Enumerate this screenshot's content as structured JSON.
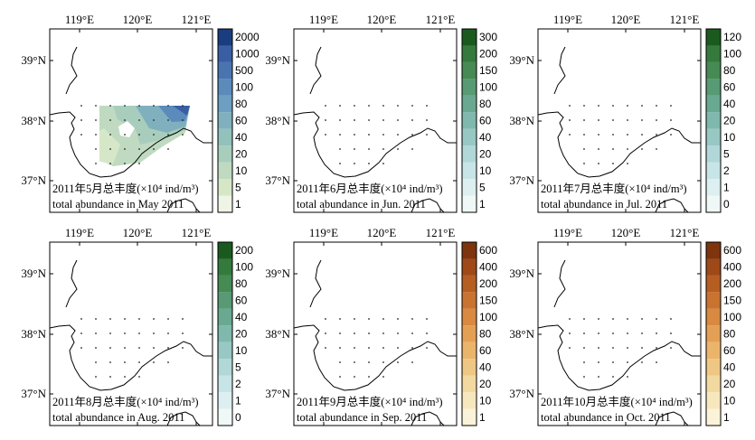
{
  "lon_labels": [
    "119°E",
    "120°E",
    "121°E"
  ],
  "lat_labels": [
    "39°N",
    "38°N",
    "37°N"
  ],
  "panels": [
    {
      "title": "2011年5月总丰度(×10⁴ ind/m³)",
      "subtitle": "total abundance in May 2011",
      "scale": [
        "1",
        "5",
        "10",
        "20",
        "40",
        "60",
        "80",
        "100",
        "500",
        "1000",
        "2000"
      ],
      "colors": [
        "#eef4e6",
        "#d6e7c8",
        "#bfdac0",
        "#a8cdbd",
        "#93c1bb",
        "#80b0bd",
        "#6c9fc1",
        "#5b8bbb",
        "#4a74b0",
        "#3a5ea3",
        "#1a3d7f"
      ],
      "field": "blue"
    },
    {
      "title": "2011年6月总丰度(×10⁴ ind/m³)",
      "subtitle": "total abundance in Jun. 2011",
      "scale": [
        "1",
        "5",
        "10",
        "20",
        "40",
        "60",
        "80",
        "100",
        "150",
        "200",
        "300"
      ],
      "colors": [
        "#f0f7f7",
        "#ddeff0",
        "#c7e4e6",
        "#b1d7d8",
        "#98c8c4",
        "#7fb8ac",
        "#69a891",
        "#579a73",
        "#468a54",
        "#347a3c",
        "#1a5a1e"
      ],
      "field": "green-jun"
    },
    {
      "title": "2011年7月总丰度(×10⁴ ind/m³)",
      "subtitle": "total abundance in Jul. 2011",
      "scale": [
        "0",
        "1",
        "2",
        "5",
        "10",
        "20",
        "40",
        "60",
        "80",
        "100",
        "120"
      ],
      "colors": [
        "#f0f7f7",
        "#ddeff0",
        "#c7e4e6",
        "#b1d7d8",
        "#98c8c4",
        "#7fb8ac",
        "#69a891",
        "#579a73",
        "#468a54",
        "#347a3c",
        "#1a5a1e"
      ],
      "field": "green-jul"
    },
    {
      "title": "2011年8月总丰度(×10⁴ ind/m³)",
      "subtitle": "total abundance in Aug. 2011",
      "scale": [
        "0",
        "1",
        "2",
        "5",
        "10",
        "20",
        "40",
        "60",
        "80",
        "100",
        "200"
      ],
      "colors": [
        "#f0f7f7",
        "#ddeff0",
        "#c7e4e6",
        "#b1d7d8",
        "#98c8c4",
        "#7fb8ac",
        "#69a891",
        "#579a73",
        "#468a54",
        "#347a3c",
        "#1a5a1e"
      ],
      "field": "green-aug"
    },
    {
      "title": "2011年9月总丰度(×10⁴ ind/m³)",
      "subtitle": "total abundance in Sep. 2011",
      "scale": [
        "1",
        "10",
        "20",
        "40",
        "60",
        "80",
        "100",
        "150",
        "200",
        "400",
        "600"
      ],
      "colors": [
        "#fbf3d9",
        "#f6e7bd",
        "#f2d9a0",
        "#eec784",
        "#eab56b",
        "#e3a055",
        "#d98a40",
        "#c97330",
        "#b65e22",
        "#9e4917",
        "#7e340c"
      ],
      "field": "orange-sep"
    },
    {
      "title": "2011年10月总丰度(×10⁴ ind/m³)",
      "subtitle": "total abundance in Oct. 2011",
      "scale": [
        "1",
        "10",
        "20",
        "40",
        "60",
        "80",
        "100",
        "150",
        "200",
        "400",
        "600"
      ],
      "colors": [
        "#fbf3d9",
        "#f6e7bd",
        "#f2d9a0",
        "#eec784",
        "#eab56b",
        "#e3a055",
        "#d98a40",
        "#c97330",
        "#b65e22",
        "#9e4917",
        "#7e340c"
      ],
      "field": "orange-oct"
    }
  ]
}
